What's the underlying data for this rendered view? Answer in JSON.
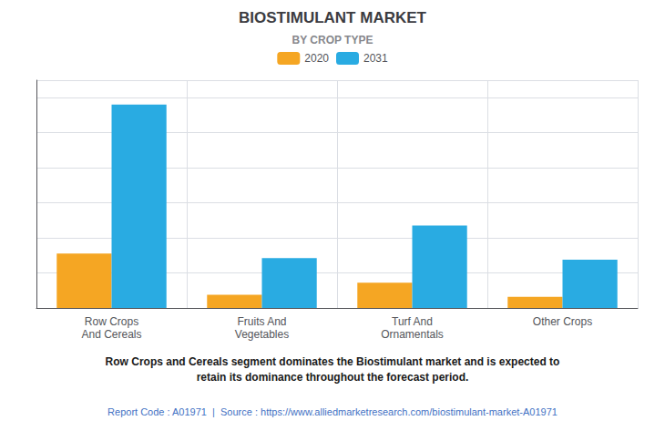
{
  "chart_data": {
    "type": "bar",
    "title": "BIOSTIMULANT MARKET",
    "subtitle": "BY CROP TYPE",
    "categories": [
      "Row Crops\nAnd Cereals",
      "Fruits And\nVegetables",
      "Turf And\nOrnamentals",
      "Other Crops"
    ],
    "series": [
      {
        "name": "2020",
        "color": "#F5A623",
        "values": [
          1.55,
          0.38,
          0.72,
          0.32
        ]
      },
      {
        "name": "2031",
        "color": "#29ABE2",
        "values": [
          5.8,
          1.42,
          2.35,
          1.38
        ]
      }
    ],
    "ylim": [
      0,
      6.496
    ],
    "yticks": [
      0,
      1,
      2,
      3,
      4,
      5,
      6
    ],
    "tick_labels": "x",
    "grid": true,
    "legend": "top",
    "annotations": [
      "Row Crops and Cereals segment dominates the Biostimulant market and is expected to\nretain its dominance throughout the forecast period.",
      "Report Code : A01971  |  Source : https://www.alliedmarketresearch.com/biostimulant-market-A01971"
    ]
  }
}
